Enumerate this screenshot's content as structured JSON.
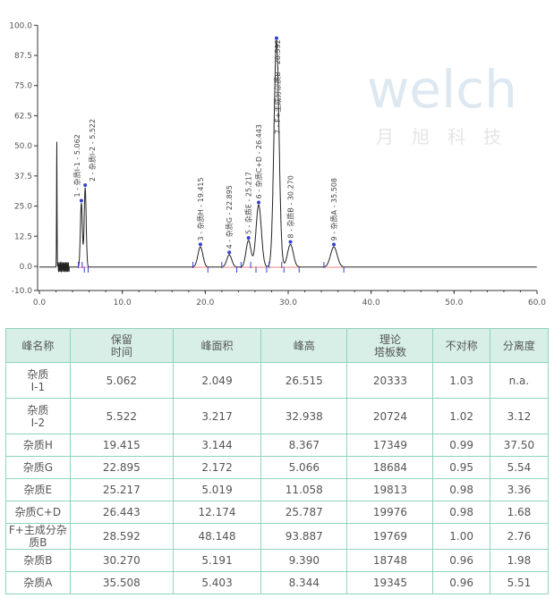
{
  "chart_data": {
    "type": "line",
    "title": "",
    "xlabel": "",
    "ylabel": "",
    "xlim": [
      0,
      60
    ],
    "ylim": [
      -10,
      100
    ],
    "x_ticks": [
      "0.0",
      "10.0",
      "20.0",
      "30.0",
      "40.0",
      "50.0",
      "60.0"
    ],
    "y_ticks": [
      "-10.0",
      "0.0",
      "12.5",
      "25.0",
      "37.5",
      "50.0",
      "62.5",
      "75.0",
      "87.5",
      "100.0"
    ],
    "solvent_peak": {
      "x": 2.1,
      "y": 52
    },
    "peaks": [
      {
        "label": "1 - 杂质I-1 - 5.062",
        "rt": 5.062,
        "height": 26.515,
        "width": 0.12
      },
      {
        "label": "2 - 杂质I-2 - 5.522",
        "rt": 5.522,
        "height": 32.938,
        "width": 0.12
      },
      {
        "label": "3 - 杂质H - 19.415",
        "rt": 19.415,
        "height": 8.367,
        "width": 0.3
      },
      {
        "label": "4 - 杂质G - 22.895",
        "rt": 22.895,
        "height": 5.066,
        "width": 0.3
      },
      {
        "label": "5 - 杂质E - 25.217",
        "rt": 25.217,
        "height": 11.058,
        "width": 0.3
      },
      {
        "label": "6 - 杂质C+D - 26.443",
        "rt": 26.443,
        "height": 25.787,
        "width": 0.32
      },
      {
        "label": "7 - F+主成分杂质B - 28.592",
        "rt": 28.592,
        "height": 93.887,
        "width": 0.3
      },
      {
        "label": "8 - 杂质B - 30.270",
        "rt": 30.27,
        "height": 9.39,
        "width": 0.35
      },
      {
        "label": "9 - 杂质A - 35.508",
        "rt": 35.508,
        "height": 8.344,
        "width": 0.4
      }
    ],
    "watermark": "Welch 月旭科技"
  },
  "table": {
    "headers": [
      [
        "峰名称",
        ""
      ],
      [
        "保留",
        "时间"
      ],
      [
        "峰面积",
        ""
      ],
      [
        "峰高",
        ""
      ],
      [
        "理论",
        "塔板数"
      ],
      [
        "不对称",
        ""
      ],
      [
        "分离度",
        ""
      ]
    ],
    "rows": [
      {
        "name": [
          "杂质",
          "I-1"
        ],
        "cells": [
          "5.062",
          "2.049",
          "26.515",
          "20333",
          "1.03",
          "n.a."
        ]
      },
      {
        "name": [
          "杂质",
          "I-2"
        ],
        "cells": [
          "5.522",
          "3.217",
          "32.938",
          "20724",
          "1.02",
          "3.12"
        ]
      },
      {
        "name": [
          "杂质H",
          ""
        ],
        "cells": [
          "19.415",
          "3.144",
          "8.367",
          "17349",
          "0.99",
          "37.50"
        ]
      },
      {
        "name": [
          "杂质G",
          ""
        ],
        "cells": [
          "22.895",
          "2.172",
          "5.066",
          "18684",
          "0.95",
          "5.54"
        ]
      },
      {
        "name": [
          "杂质E",
          ""
        ],
        "cells": [
          "25.217",
          "5.019",
          "11.058",
          "19813",
          "0.98",
          "3.36"
        ]
      },
      {
        "name": [
          "杂质C+D",
          ""
        ],
        "cells": [
          "26.443",
          "12.174",
          "25.787",
          "19976",
          "0.98",
          "1.68"
        ]
      },
      {
        "name": [
          "F+主成分杂质B",
          ""
        ],
        "cells": [
          "28.592",
          "48.148",
          "93.887",
          "19769",
          "1.00",
          "2.76"
        ]
      },
      {
        "name": [
          "杂质B",
          ""
        ],
        "cells": [
          "30.270",
          "5.191",
          "9.390",
          "18748",
          "0.96",
          "1.98"
        ]
      },
      {
        "name": [
          "杂质A",
          ""
        ],
        "cells": [
          "35.508",
          "5.403",
          "8.344",
          "19345",
          "0.96",
          "5.51"
        ]
      }
    ]
  }
}
